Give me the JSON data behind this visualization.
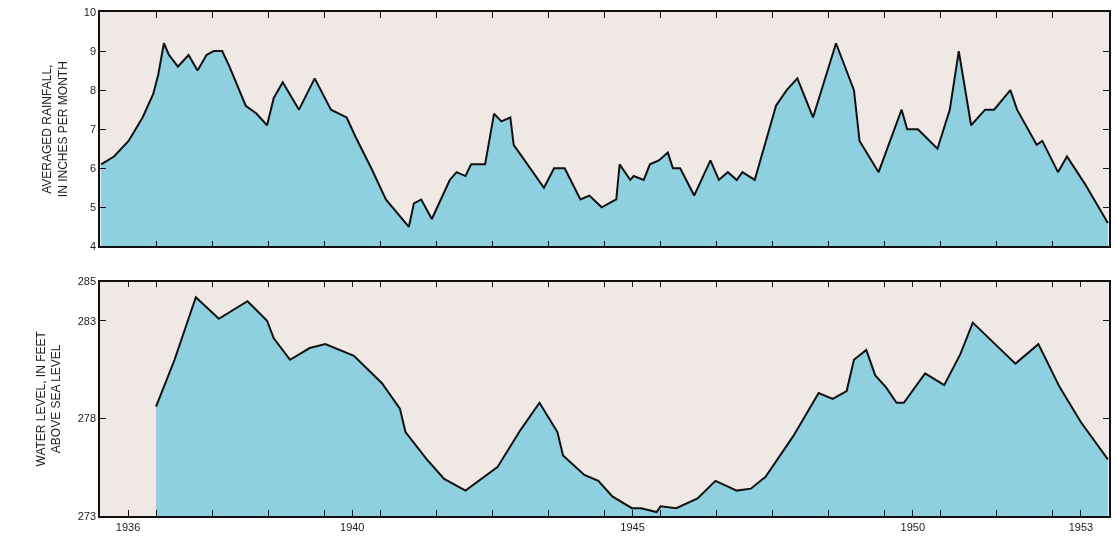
{
  "chart_data": [
    {
      "type": "area",
      "ylabel": "AVERAGED RAINFALL,\nIN INCHES PER MONTH",
      "color": "#8fd0e0",
      "tick_labels": "y",
      "xlim": [
        1936,
        1954
      ],
      "xticks": [
        {
          "value": 1936,
          "label": null
        },
        {
          "value": 1937,
          "label": null
        },
        {
          "value": 1938,
          "label": null
        },
        {
          "value": 1939,
          "label": null
        },
        {
          "value": 1940,
          "label": null
        },
        {
          "value": 1941,
          "label": null
        },
        {
          "value": 1942,
          "label": null
        },
        {
          "value": 1943,
          "label": null
        },
        {
          "value": 1944,
          "label": null
        },
        {
          "value": 1945,
          "label": null
        },
        {
          "value": 1946,
          "label": null
        },
        {
          "value": 1947,
          "label": null
        },
        {
          "value": 1948,
          "label": null
        },
        {
          "value": 1949,
          "label": null
        },
        {
          "value": 1950,
          "label": null
        },
        {
          "value": 1951,
          "label": null
        },
        {
          "value": 1952,
          "label": null
        },
        {
          "value": 1953,
          "label": null
        },
        {
          "value": 1954,
          "label": null
        }
      ],
      "ylim": [
        4,
        10
      ],
      "yticks": [
        4,
        5,
        6,
        7,
        8,
        9,
        10
      ],
      "x": [
        1936.02,
        1936.25,
        1936.51,
        1936.76,
        1936.95,
        1937.04,
        1937.14,
        1937.23,
        1937.39,
        1937.58,
        1937.74,
        1937.9,
        1938.03,
        1938.18,
        1938.31,
        1938.6,
        1938.79,
        1938.98,
        1939.1,
        1939.26,
        1939.55,
        1939.83,
        1940.12,
        1940.4,
        1940.56,
        1940.84,
        1941.1,
        1941.51,
        1941.6,
        1941.73,
        1941.92,
        1942.24,
        1942.36,
        1942.52,
        1942.62,
        1942.87,
        1943.03,
        1943.16,
        1943.32,
        1943.38,
        1943.92,
        1944.1,
        1944.29,
        1944.57,
        1944.73,
        1944.95,
        1945.21,
        1945.27,
        1945.46,
        1945.52,
        1945.7,
        1945.81,
        1945.97,
        1946.13,
        1946.22,
        1946.35,
        1946.6,
        1946.89,
        1947.04,
        1947.2,
        1947.36,
        1947.46,
        1947.68,
        1948.06,
        1948.25,
        1948.44,
        1948.72,
        1949.13,
        1949.45,
        1949.55,
        1949.89,
        1950.3,
        1950.4,
        1950.59,
        1950.94,
        1951.16,
        1951.32,
        1951.54,
        1951.79,
        1951.95,
        1952.24,
        1952.36,
        1952.71,
        1952.81,
        1953.09,
        1953.25,
        1953.57,
        1953.98
      ],
      "values": [
        6.1,
        6.3,
        6.7,
        7.3,
        7.9,
        8.4,
        9.2,
        8.9,
        8.6,
        8.9,
        8.5,
        8.9,
        9.0,
        9.0,
        8.6,
        7.6,
        7.4,
        7.1,
        7.8,
        8.2,
        7.5,
        8.3,
        7.5,
        7.3,
        6.8,
        6.0,
        5.2,
        4.5,
        5.1,
        5.2,
        4.7,
        5.7,
        5.9,
        5.8,
        6.1,
        6.1,
        7.4,
        7.2,
        7.3,
        6.6,
        5.5,
        6.0,
        6.0,
        5.2,
        5.3,
        5.0,
        5.2,
        6.1,
        5.7,
        5.8,
        5.7,
        6.1,
        6.2,
        6.4,
        6.0,
        6.0,
        5.3,
        6.2,
        5.7,
        5.9,
        5.7,
        5.9,
        5.7,
        7.6,
        8.0,
        8.3,
        7.3,
        9.2,
        8.0,
        6.7,
        5.9,
        7.5,
        7.0,
        7.0,
        6.5,
        7.5,
        9.0,
        7.1,
        7.5,
        7.5,
        8.0,
        7.5,
        6.6,
        6.7,
        5.9,
        6.3,
        5.6,
        4.6
      ]
    },
    {
      "type": "area",
      "ylabel": "WATER LEVEL, IN FEET\nABOVE SEA LEVEL",
      "color": "#8fd0e0",
      "xlim": [
        1936,
        1954
      ],
      "xticks": [
        {
          "value": 1936,
          "label": null
        },
        {
          "value": 1936.5,
          "label": "1936"
        },
        {
          "value": 1937,
          "label": null
        },
        {
          "value": 1938,
          "label": null
        },
        {
          "value": 1939,
          "label": null
        },
        {
          "value": 1940,
          "label": null
        },
        {
          "value": 1940.5,
          "label": "1940"
        },
        {
          "value": 1941,
          "label": null
        },
        {
          "value": 1942,
          "label": null
        },
        {
          "value": 1943,
          "label": null
        },
        {
          "value": 1944,
          "label": null
        },
        {
          "value": 1945,
          "label": null
        },
        {
          "value": 1945.5,
          "label": "1945"
        },
        {
          "value": 1946,
          "label": null
        },
        {
          "value": 1947,
          "label": null
        },
        {
          "value": 1948,
          "label": null
        },
        {
          "value": 1949,
          "label": null
        },
        {
          "value": 1950,
          "label": null
        },
        {
          "value": 1950.5,
          "label": "1950"
        },
        {
          "value": 1951,
          "label": null
        },
        {
          "value": 1952,
          "label": null
        },
        {
          "value": 1953,
          "label": null
        },
        {
          "value": 1953.5,
          "label": "1953"
        },
        {
          "value": 1954,
          "label": null
        }
      ],
      "ylim": [
        273,
        285
      ],
      "yticks": [
        273,
        278,
        283,
        285
      ],
      "x": [
        1937.0,
        1937.33,
        1937.71,
        1938.12,
        1938.63,
        1938.98,
        1939.1,
        1939.39,
        1939.74,
        1940.02,
        1940.53,
        1941.03,
        1941.35,
        1941.45,
        1941.83,
        1942.14,
        1942.52,
        1943.09,
        1943.5,
        1943.84,
        1944.16,
        1944.26,
        1944.64,
        1944.89,
        1945.14,
        1945.49,
        1945.65,
        1945.93,
        1946.0,
        1946.28,
        1946.66,
        1946.98,
        1947.36,
        1947.61,
        1947.87,
        1948.37,
        1948.82,
        1949.07,
        1949.32,
        1949.45,
        1949.67,
        1949.83,
        1950.02,
        1950.21,
        1950.34,
        1950.72,
        1951.06,
        1951.35,
        1951.57,
        1952.33,
        1952.74,
        1953.12,
        1953.5,
        1953.98
      ],
      "values": [
        278.6,
        281.0,
        284.2,
        283.1,
        284.0,
        283.0,
        282.1,
        281.0,
        281.6,
        281.8,
        281.2,
        279.8,
        278.5,
        277.3,
        275.9,
        274.9,
        274.3,
        275.5,
        277.4,
        278.8,
        277.3,
        276.1,
        275.1,
        274.8,
        274.0,
        273.4,
        273.4,
        273.2,
        273.5,
        273.4,
        273.9,
        274.8,
        274.3,
        274.4,
        275.0,
        277.1,
        279.3,
        279.0,
        279.4,
        281.0,
        281.5,
        280.2,
        279.6,
        278.8,
        278.8,
        280.3,
        279.7,
        281.3,
        282.9,
        280.8,
        281.8,
        279.6,
        277.8,
        275.9
      ]
    }
  ]
}
